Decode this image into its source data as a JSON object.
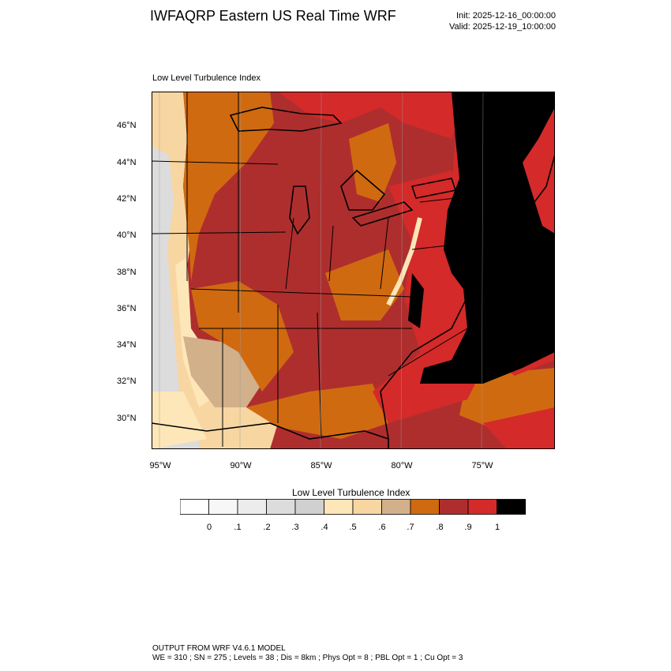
{
  "header": {
    "title": "IWFAQRP Eastern US Real Time WRF",
    "init": "Init: 2025-12-16_00:00:00",
    "valid": "Valid: 2025-12-19_10:00:00"
  },
  "plot": {
    "subtitle": "Low Level Turbulence Index",
    "lat_labels": [
      "46°N",
      "44°N",
      "42°N",
      "40°N",
      "38°N",
      "36°N",
      "34°N",
      "32°N",
      "30°N"
    ],
    "lon_labels": [
      "95°W",
      "90°W",
      "85°W",
      "80°W",
      "75°W"
    ]
  },
  "colorbar": {
    "title": "Low Level Turbulence Index",
    "tick_labels": [
      "0",
      ".1",
      ".2",
      ".3",
      ".4",
      ".5",
      ".6",
      ".7",
      ".8",
      ".9",
      "1"
    ],
    "colors": [
      "#ffffff",
      "#f7f7f7",
      "#ececec",
      "#dcdcdc",
      "#d0d0d0",
      "#fde6b8",
      "#f7d6a2",
      "#d2b08a",
      "#d06a10",
      "#ae2e2e",
      "#d42a2a",
      "#000000"
    ]
  },
  "footer": {
    "line1": "OUTPUT FROM WRF V4.6.1 MODEL",
    "line2": "WE = 310 ; SN = 275 ; Levels = 38 ; Dis = 8km ; Phys Opt = 8 ; PBL Opt = 1 ; Cu Opt = 3"
  }
}
